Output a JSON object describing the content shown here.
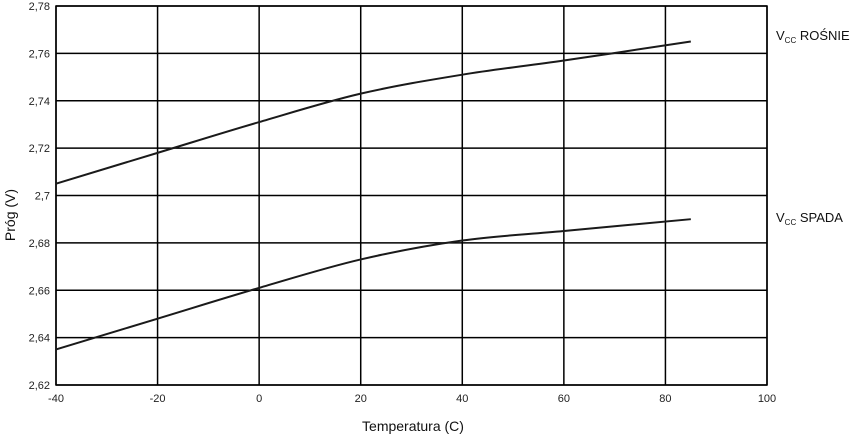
{
  "chart_data": {
    "type": "line",
    "xlabel": "Temperatura (C)",
    "ylabel": "Próg (V)",
    "xlim": [
      -40,
      100
    ],
    "ylim": [
      2.62,
      2.78
    ],
    "xticks": [
      -40,
      -20,
      0,
      20,
      40,
      60,
      80,
      100
    ],
    "xtick_labels": [
      "-40",
      "-20",
      "0",
      "20",
      "40",
      "60",
      "80",
      "100"
    ],
    "yticks": [
      2.62,
      2.64,
      2.66,
      2.68,
      2.7,
      2.72,
      2.74,
      2.76,
      2.78
    ],
    "ytick_labels": [
      "2,62",
      "2,64",
      "2,66",
      "2,68",
      "2,7",
      "2,72",
      "2,74",
      "2,76",
      "2,78"
    ],
    "grid": true,
    "legend": "right, labels at line ends",
    "line_color": "#1a1a1a",
    "series": [
      {
        "name_main": "V",
        "name_sub": "CC",
        "name_rest": " ROŚNIE",
        "x": [
          -40,
          -20,
          0,
          20,
          40,
          60,
          85
        ],
        "y": [
          2.705,
          2.718,
          2.731,
          2.743,
          2.751,
          2.757,
          2.765
        ]
      },
      {
        "name_main": "V",
        "name_sub": "CC",
        "name_rest": " SPADA",
        "x": [
          -40,
          -20,
          0,
          20,
          40,
          60,
          85
        ],
        "y": [
          2.635,
          2.648,
          2.661,
          2.673,
          2.681,
          2.685,
          2.69
        ]
      }
    ]
  }
}
